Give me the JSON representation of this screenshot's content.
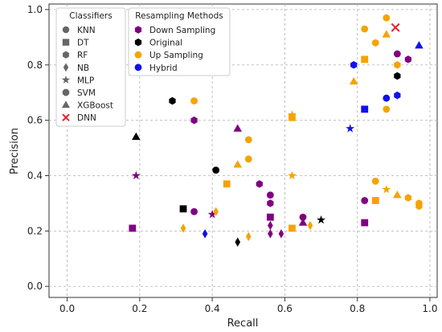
{
  "chart_data": {
    "type": "scatter",
    "xlabel": "Recall",
    "ylabel": "Precision",
    "xlim": [
      -0.05,
      1.02
    ],
    "ylim": [
      -0.04,
      1.02
    ],
    "xticks": [
      "0.0",
      "0.2",
      "0.4",
      "0.6",
      "0.8",
      "1.0"
    ],
    "yticks": [
      "0.0",
      "0.2",
      "0.4",
      "0.6",
      "0.8",
      "1.0"
    ],
    "grid": true,
    "legends": [
      {
        "title": "Classifiers",
        "placement": "top-left",
        "entries": [
          {
            "label": "KNN",
            "marker": "circle"
          },
          {
            "label": "DT",
            "marker": "square"
          },
          {
            "label": "RF",
            "marker": "hexagon"
          },
          {
            "label": "NB",
            "marker": "diamond"
          },
          {
            "label": "MLP",
            "marker": "star"
          },
          {
            "label": "SVM",
            "marker": "octagon"
          },
          {
            "label": "XGBoost",
            "marker": "triangle"
          },
          {
            "label": "DNN",
            "marker": "x"
          }
        ]
      },
      {
        "title": "Resampling Methods",
        "placement": "top-left",
        "entries": [
          {
            "label": "Down Sampling",
            "color": "#800080",
            "marker": "hexagon"
          },
          {
            "label": "Original",
            "color": "#000000",
            "marker": "hexagon"
          },
          {
            "label": "Up Sampling",
            "color": "#f5a300",
            "marker": "circle"
          },
          {
            "label": "Hybrid",
            "color": "#1010ee",
            "marker": "circle"
          }
        ]
      }
    ],
    "points": [
      {
        "x": 0.18,
        "y": 0.21,
        "marker": "square",
        "group": "Down Sampling"
      },
      {
        "x": 0.19,
        "y": 0.4,
        "marker": "star",
        "group": "Down Sampling"
      },
      {
        "x": 0.35,
        "y": 0.27,
        "marker": "circle",
        "group": "Down Sampling"
      },
      {
        "x": 0.35,
        "y": 0.6,
        "marker": "hexagon",
        "group": "Down Sampling"
      },
      {
        "x": 0.4,
        "y": 0.26,
        "marker": "star",
        "group": "Down Sampling"
      },
      {
        "x": 0.47,
        "y": 0.57,
        "marker": "triangle",
        "group": "Down Sampling"
      },
      {
        "x": 0.53,
        "y": 0.37,
        "marker": "hexagon",
        "group": "Down Sampling"
      },
      {
        "x": 0.56,
        "y": 0.33,
        "marker": "circle",
        "group": "Down Sampling"
      },
      {
        "x": 0.56,
        "y": 0.3,
        "marker": "hexagon",
        "group": "Down Sampling"
      },
      {
        "x": 0.56,
        "y": 0.25,
        "marker": "square",
        "group": "Down Sampling"
      },
      {
        "x": 0.56,
        "y": 0.22,
        "marker": "diamond",
        "group": "Down Sampling"
      },
      {
        "x": 0.56,
        "y": 0.19,
        "marker": "diamond",
        "group": "Down Sampling"
      },
      {
        "x": 0.59,
        "y": 0.19,
        "marker": "diamond",
        "group": "Down Sampling"
      },
      {
        "x": 0.65,
        "y": 0.25,
        "marker": "circle",
        "group": "Down Sampling"
      },
      {
        "x": 0.65,
        "y": 0.23,
        "marker": "triangle",
        "group": "Down Sampling"
      },
      {
        "x": 0.82,
        "y": 0.31,
        "marker": "circle",
        "group": "Down Sampling"
      },
      {
        "x": 0.82,
        "y": 0.23,
        "marker": "square",
        "group": "Down Sampling"
      },
      {
        "x": 0.91,
        "y": 0.84,
        "marker": "circle",
        "group": "Down Sampling"
      },
      {
        "x": 0.94,
        "y": 0.82,
        "marker": "hexagon",
        "group": "Down Sampling"
      },
      {
        "x": 0.19,
        "y": 0.54,
        "marker": "triangle",
        "group": "Original"
      },
      {
        "x": 0.29,
        "y": 0.67,
        "marker": "hexagon",
        "group": "Original"
      },
      {
        "x": 0.32,
        "y": 0.28,
        "marker": "square",
        "group": "Original"
      },
      {
        "x": 0.41,
        "y": 0.42,
        "marker": "circle",
        "group": "Original"
      },
      {
        "x": 0.47,
        "y": 0.16,
        "marker": "diamond",
        "group": "Original"
      },
      {
        "x": 0.7,
        "y": 0.24,
        "marker": "star",
        "group": "Original"
      },
      {
        "x": 0.91,
        "y": 0.76,
        "marker": "hexagon",
        "group": "Original"
      },
      {
        "x": 0.32,
        "y": 0.21,
        "marker": "diamond",
        "group": "Up Sampling"
      },
      {
        "x": 0.35,
        "y": 0.67,
        "marker": "circle",
        "group": "Up Sampling"
      },
      {
        "x": 0.41,
        "y": 0.27,
        "marker": "diamond",
        "group": "Up Sampling"
      },
      {
        "x": 0.44,
        "y": 0.37,
        "marker": "square",
        "group": "Up Sampling"
      },
      {
        "x": 0.47,
        "y": 0.44,
        "marker": "triangle",
        "group": "Up Sampling"
      },
      {
        "x": 0.5,
        "y": 0.53,
        "marker": "circle",
        "group": "Up Sampling"
      },
      {
        "x": 0.5,
        "y": 0.46,
        "marker": "circle",
        "group": "Up Sampling"
      },
      {
        "x": 0.5,
        "y": 0.18,
        "marker": "diamond",
        "group": "Up Sampling"
      },
      {
        "x": 0.62,
        "y": 0.62,
        "marker": "star",
        "group": "Up Sampling"
      },
      {
        "x": 0.62,
        "y": 0.61,
        "marker": "square",
        "group": "Up Sampling"
      },
      {
        "x": 0.62,
        "y": 0.4,
        "marker": "star",
        "group": "Up Sampling"
      },
      {
        "x": 0.62,
        "y": 0.21,
        "marker": "square",
        "group": "Up Sampling"
      },
      {
        "x": 0.67,
        "y": 0.22,
        "marker": "diamond",
        "group": "Up Sampling"
      },
      {
        "x": 0.79,
        "y": 0.74,
        "marker": "triangle",
        "group": "Up Sampling"
      },
      {
        "x": 0.82,
        "y": 0.93,
        "marker": "circle",
        "group": "Up Sampling"
      },
      {
        "x": 0.82,
        "y": 0.82,
        "marker": "square",
        "group": "Up Sampling"
      },
      {
        "x": 0.85,
        "y": 0.88,
        "marker": "hexagon",
        "group": "Up Sampling"
      },
      {
        "x": 0.85,
        "y": 0.38,
        "marker": "circle",
        "group": "Up Sampling"
      },
      {
        "x": 0.85,
        "y": 0.31,
        "marker": "square",
        "group": "Up Sampling"
      },
      {
        "x": 0.88,
        "y": 0.97,
        "marker": "circle",
        "group": "Up Sampling"
      },
      {
        "x": 0.88,
        "y": 0.91,
        "marker": "triangle",
        "group": "Up Sampling"
      },
      {
        "x": 0.88,
        "y": 0.64,
        "marker": "circle",
        "group": "Up Sampling"
      },
      {
        "x": 0.88,
        "y": 0.35,
        "marker": "star",
        "group": "Up Sampling"
      },
      {
        "x": 0.91,
        "y": 0.8,
        "marker": "hexagon",
        "group": "Up Sampling"
      },
      {
        "x": 0.91,
        "y": 0.33,
        "marker": "triangle",
        "group": "Up Sampling"
      },
      {
        "x": 0.94,
        "y": 0.32,
        "marker": "hexagon",
        "group": "Up Sampling"
      },
      {
        "x": 0.97,
        "y": 0.3,
        "marker": "circle",
        "group": "Up Sampling"
      },
      {
        "x": 0.97,
        "y": 0.29,
        "marker": "hexagon",
        "group": "Up Sampling"
      },
      {
        "x": 0.38,
        "y": 0.19,
        "marker": "diamond",
        "group": "Hybrid"
      },
      {
        "x": 0.78,
        "y": 0.57,
        "marker": "star",
        "group": "Hybrid"
      },
      {
        "x": 0.79,
        "y": 0.8,
        "marker": "hexagon",
        "group": "Hybrid"
      },
      {
        "x": 0.82,
        "y": 0.64,
        "marker": "square",
        "group": "Hybrid"
      },
      {
        "x": 0.88,
        "y": 0.68,
        "marker": "circle",
        "group": "Hybrid"
      },
      {
        "x": 0.91,
        "y": 0.69,
        "marker": "hexagon",
        "group": "Hybrid"
      },
      {
        "x": 0.97,
        "y": 0.87,
        "marker": "triangle",
        "group": "Hybrid"
      },
      {
        "x": 0.905,
        "y": 0.935,
        "marker": "x",
        "group": "DNN"
      }
    ],
    "colors": {
      "Down Sampling": "#800080",
      "Original": "#000000",
      "Up Sampling": "#f5a300",
      "Hybrid": "#1010ee",
      "DNN": "#e8202a",
      "legend_marker": "#666666"
    }
  }
}
